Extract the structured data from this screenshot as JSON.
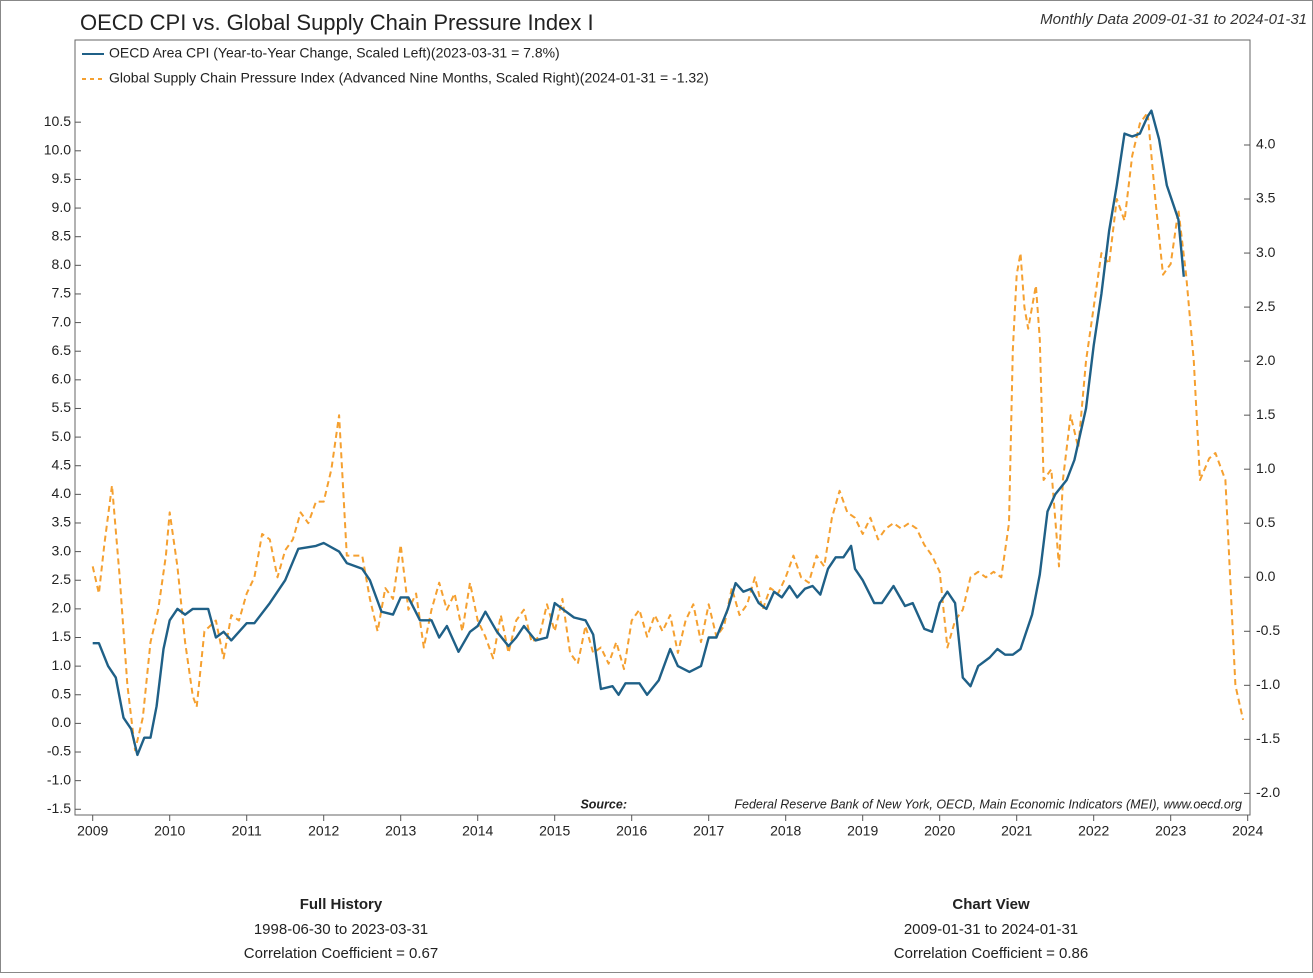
{
  "chart_data": {
    "type": "line",
    "title": "OECD CPI vs. Global Supply Chain Pressure Index I",
    "subtitle": "Monthly Data 2009-01-31 to 2024-01-31",
    "source_label": "Source:",
    "source": "Federal Reserve Bank of New York, OECD, Main Economic Indicators (MEI), www.oecd.org",
    "xlim": [
      2008.77,
      2024.03
    ],
    "xticks": [
      2009,
      2010,
      2011,
      2012,
      2013,
      2014,
      2015,
      2016,
      2017,
      2018,
      2019,
      2020,
      2021,
      2022,
      2023,
      2024
    ],
    "ylim": [
      -1.6,
      10.8
    ],
    "yticks": [
      -1.5,
      {
        "value": -1,
        "label": "-1.0"
      },
      -0.5,
      {
        "value": 0,
        "label": "0.0"
      },
      0.5,
      {
        "value": 1,
        "label": "1.0"
      },
      1.5,
      {
        "value": 2,
        "label": "2.0"
      },
      2.5,
      {
        "value": 3,
        "label": "3.0"
      },
      3.5,
      {
        "value": 4,
        "label": "4.0"
      },
      4.5,
      {
        "value": 5,
        "label": "5.0"
      },
      5.5,
      {
        "value": 6,
        "label": "6.0"
      },
      6.5,
      {
        "value": 7,
        "label": "7.0"
      },
      7.5,
      {
        "value": 8,
        "label": "8.0"
      },
      8.5,
      {
        "value": 9,
        "label": "9.0"
      },
      9.5,
      {
        "value": 10,
        "label": "10.0"
      },
      10.5
    ],
    "y2lim": [
      -2.2,
      4.37
    ],
    "y2ticks": [
      {
        "value": -2,
        "label": "-2.0"
      },
      -1.5,
      {
        "value": -1,
        "label": "-1.0"
      },
      -0.5,
      {
        "value": 0,
        "label": "0.0"
      },
      0.5,
      {
        "value": 1,
        "label": "1.0"
      },
      1.5,
      {
        "value": 2,
        "label": "2.0"
      },
      2.5,
      {
        "value": 3,
        "label": "3.0"
      },
      3.5,
      {
        "value": 4,
        "label": "4.0"
      }
    ],
    "grid": false,
    "legend": "top-left",
    "series": [
      {
        "name": "OECD Area CPI (Year-to-Year Change, Scaled Left)(2023-03-31 = 7.8%)",
        "color": "#1f6087",
        "dash": false,
        "x": [
          2009.0,
          2009.08,
          2009.2,
          2009.3,
          2009.4,
          2009.5,
          2009.58,
          2009.67,
          2009.75,
          2009.83,
          2009.92,
          2010.0,
          2010.1,
          2010.2,
          2010.3,
          2010.5,
          2010.6,
          2010.7,
          2010.8,
          2010.9,
          2011.0,
          2011.1,
          2011.3,
          2011.5,
          2011.67,
          2011.9,
          2012.0,
          2012.2,
          2012.3,
          2012.5,
          2012.6,
          2012.75,
          2012.9,
          2013.0,
          2013.1,
          2013.25,
          2013.4,
          2013.5,
          2013.6,
          2013.75,
          2013.9,
          2014.0,
          2014.1,
          2014.25,
          2014.4,
          2014.5,
          2014.6,
          2014.75,
          2014.9,
          2015.0,
          2015.1,
          2015.25,
          2015.4,
          2015.5,
          2015.6,
          2015.75,
          2015.83,
          2015.92,
          2016.1,
          2016.2,
          2016.35,
          2016.5,
          2016.6,
          2016.75,
          2016.9,
          2017.0,
          2017.1,
          2017.25,
          2017.35,
          2017.45,
          2017.55,
          2017.65,
          2017.75,
          2017.85,
          2017.95,
          2018.05,
          2018.15,
          2018.25,
          2018.35,
          2018.45,
          2018.55,
          2018.65,
          2018.75,
          2018.85,
          2018.9,
          2019.0,
          2019.15,
          2019.25,
          2019.4,
          2019.55,
          2019.65,
          2019.8,
          2019.9,
          2020.0,
          2020.1,
          2020.2,
          2020.3,
          2020.4,
          2020.5,
          2020.65,
          2020.75,
          2020.85,
          2020.95,
          2021.05,
          2021.2,
          2021.3,
          2021.4,
          2021.5,
          2021.65,
          2021.75,
          2021.9,
          2022.0,
          2022.1,
          2022.2,
          2022.3,
          2022.4,
          2022.5,
          2022.6,
          2022.7,
          2022.75,
          2022.85,
          2022.95,
          2023.1,
          2023.17
        ],
        "values": [
          1.4,
          1.4,
          1.0,
          0.8,
          0.1,
          -0.1,
          -0.55,
          -0.25,
          -0.25,
          0.3,
          1.3,
          1.8,
          2.0,
          1.9,
          2.0,
          2.0,
          1.5,
          1.6,
          1.45,
          1.6,
          1.75,
          1.75,
          2.1,
          2.5,
          3.05,
          3.1,
          3.15,
          3.0,
          2.8,
          2.7,
          2.5,
          1.95,
          1.9,
          2.2,
          2.2,
          1.8,
          1.8,
          1.5,
          1.7,
          1.25,
          1.6,
          1.7,
          1.95,
          1.6,
          1.35,
          1.5,
          1.7,
          1.45,
          1.5,
          2.1,
          2.0,
          1.85,
          1.8,
          1.55,
          0.6,
          0.65,
          0.5,
          0.7,
          0.7,
          0.5,
          0.75,
          1.3,
          1.0,
          0.9,
          1.0,
          1.5,
          1.5,
          2.0,
          2.45,
          2.3,
          2.35,
          2.1,
          2.0,
          2.3,
          2.2,
          2.4,
          2.2,
          2.35,
          2.4,
          2.25,
          2.7,
          2.9,
          2.9,
          3.1,
          2.7,
          2.5,
          2.1,
          2.1,
          2.4,
          2.05,
          2.1,
          1.65,
          1.6,
          2.1,
          2.3,
          2.1,
          0.8,
          0.65,
          1.0,
          1.15,
          1.3,
          1.2,
          1.2,
          1.3,
          1.9,
          2.6,
          3.7,
          4.0,
          4.25,
          4.6,
          5.5,
          6.6,
          7.5,
          8.6,
          9.4,
          10.3,
          10.25,
          10.3,
          10.6,
          10.7,
          10.2,
          9.4,
          8.8,
          7.8
        ]
      },
      {
        "name": "Global Supply Chain Pressure Index (Advanced Nine Months, Scaled Right)(2024-01-31 = -1.32)",
        "color": "#f5a030",
        "dash": true,
        "axis": "y2",
        "x": [
          2009.0,
          2009.08,
          2009.15,
          2009.25,
          2009.35,
          2009.45,
          2009.55,
          2009.65,
          2009.75,
          2009.85,
          2009.95,
          2010.0,
          2010.1,
          2010.2,
          2010.3,
          2010.35,
          2010.45,
          2010.6,
          2010.7,
          2010.8,
          2010.9,
          2011.0,
          2011.1,
          2011.2,
          2011.3,
          2011.4,
          2011.5,
          2011.6,
          2011.7,
          2011.8,
          2011.9,
          2012.0,
          2012.1,
          2012.2,
          2012.3,
          2012.4,
          2012.5,
          2012.6,
          2012.7,
          2012.8,
          2012.9,
          2013.0,
          2013.1,
          2013.2,
          2013.3,
          2013.4,
          2013.5,
          2013.6,
          2013.7,
          2013.8,
          2013.9,
          2014.0,
          2014.1,
          2014.2,
          2014.3,
          2014.4,
          2014.5,
          2014.6,
          2014.7,
          2014.8,
          2014.9,
          2015.0,
          2015.1,
          2015.2,
          2015.3,
          2015.4,
          2015.5,
          2015.6,
          2015.7,
          2015.8,
          2015.9,
          2016.0,
          2016.1,
          2016.2,
          2016.3,
          2016.4,
          2016.5,
          2016.6,
          2016.7,
          2016.8,
          2016.9,
          2017.0,
          2017.1,
          2017.2,
          2017.3,
          2017.4,
          2017.5,
          2017.6,
          2017.7,
          2017.8,
          2017.9,
          2018.0,
          2018.1,
          2018.2,
          2018.3,
          2018.4,
          2018.5,
          2018.6,
          2018.7,
          2018.8,
          2018.9,
          2019.0,
          2019.1,
          2019.2,
          2019.3,
          2019.4,
          2019.5,
          2019.6,
          2019.7,
          2019.8,
          2019.9,
          2020.0,
          2020.1,
          2020.2,
          2020.3,
          2020.4,
          2020.5,
          2020.6,
          2020.7,
          2020.8,
          2020.9,
          2020.95,
          2021.0,
          2021.05,
          2021.1,
          2021.15,
          2021.25,
          2021.3,
          2021.35,
          2021.45,
          2021.55,
          2021.6,
          2021.7,
          2021.8,
          2021.9,
          2022.0,
          2022.1,
          2022.2,
          2022.3,
          2022.4,
          2022.5,
          2022.6,
          2022.7,
          2022.8,
          2022.9,
          2023.0,
          2023.1,
          2023.2,
          2023.3,
          2023.38,
          2023.5,
          2023.58,
          2023.71,
          2023.84,
          2023.94
        ],
        "values": [
          0.1,
          -0.15,
          0.3,
          0.85,
          0.0,
          -1.0,
          -1.6,
          -1.3,
          -0.6,
          -0.3,
          0.2,
          0.6,
          0.1,
          -0.6,
          -1.1,
          -1.2,
          -0.5,
          -0.4,
          -0.75,
          -0.35,
          -0.4,
          -0.15,
          0.0,
          0.4,
          0.35,
          0.0,
          0.25,
          0.35,
          0.6,
          0.5,
          0.7,
          0.7,
          1.0,
          1.5,
          0.2,
          0.2,
          0.2,
          -0.2,
          -0.5,
          -0.1,
          -0.2,
          0.3,
          -0.3,
          -0.15,
          -0.65,
          -0.3,
          -0.05,
          -0.3,
          -0.15,
          -0.5,
          -0.05,
          -0.4,
          -0.55,
          -0.75,
          -0.35,
          -0.7,
          -0.4,
          -0.3,
          -0.6,
          -0.55,
          -0.25,
          -0.5,
          -0.2,
          -0.7,
          -0.8,
          -0.45,
          -0.7,
          -0.65,
          -0.8,
          -0.6,
          -0.85,
          -0.4,
          -0.3,
          -0.55,
          -0.35,
          -0.5,
          -0.35,
          -0.7,
          -0.4,
          -0.25,
          -0.6,
          -0.25,
          -0.55,
          -0.45,
          -0.1,
          -0.35,
          -0.25,
          0.0,
          -0.3,
          -0.1,
          -0.15,
          0.0,
          0.2,
          0.0,
          -0.05,
          0.2,
          0.1,
          0.55,
          0.8,
          0.6,
          0.55,
          0.4,
          0.55,
          0.35,
          0.45,
          0.5,
          0.45,
          0.5,
          0.45,
          0.3,
          0.2,
          0.05,
          -0.65,
          -0.4,
          -0.3,
          0.0,
          0.05,
          0.0,
          0.05,
          0.0,
          0.5,
          2.1,
          2.8,
          3.0,
          2.5,
          2.3,
          2.7,
          2.2,
          0.9,
          1.0,
          0.1,
          0.9,
          1.5,
          1.2,
          2.0,
          2.5,
          3.0,
          2.9,
          3.5,
          3.3,
          3.9,
          4.2,
          4.3,
          3.5,
          2.8,
          2.9,
          3.4,
          2.8,
          2.0,
          0.9,
          1.1,
          1.15,
          0.9,
          -1.0,
          -1.32
        ]
      }
    ],
    "stats": [
      {
        "title": "Full History",
        "range": "1998-06-30 to 2023-03-31",
        "correlation": "Correlation Coefficient = 0.67"
      },
      {
        "title": "Chart View",
        "range": "2009-01-31 to 2024-01-31",
        "correlation": "Correlation Coefficient = 0.86"
      }
    ]
  }
}
